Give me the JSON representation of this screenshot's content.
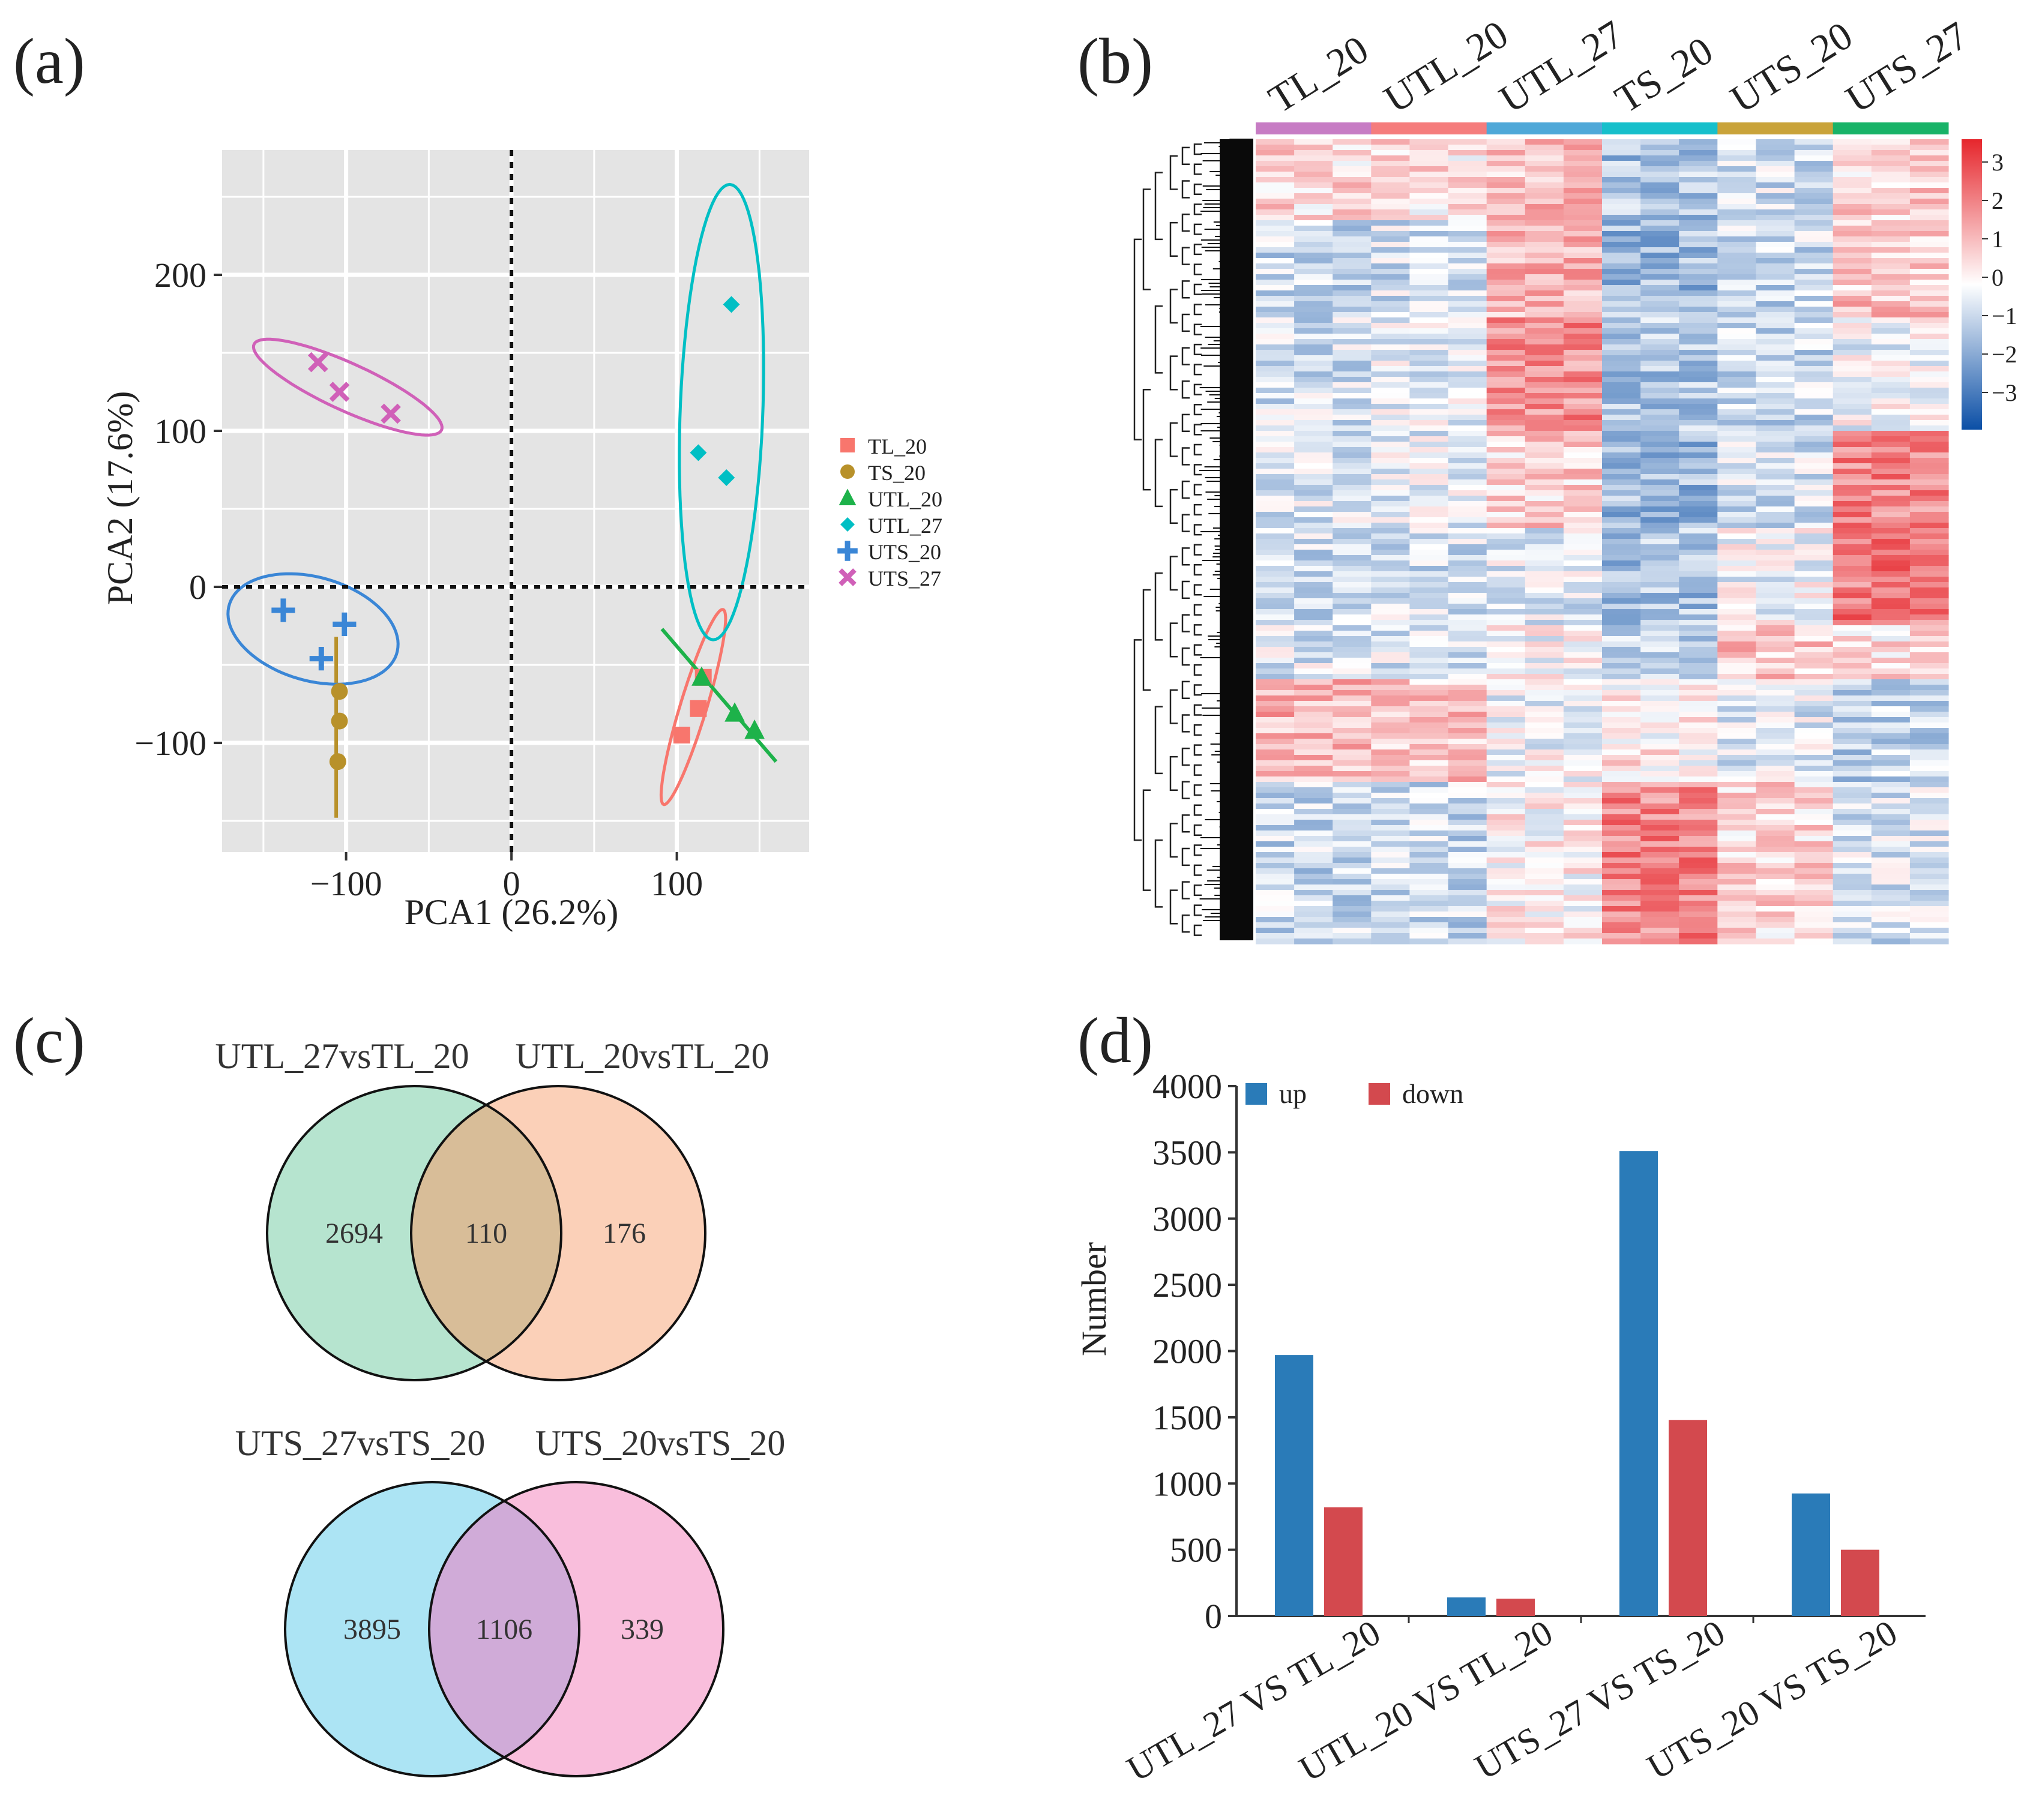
{
  "panels": {
    "a": "(a)",
    "b": "(b)",
    "c": "(c)",
    "d": "(d)"
  },
  "pca": {
    "xlabel": "PCA1 (26.2%)",
    "ylabel": "PCA2 (17.6%)",
    "xlim": [
      -175,
      180
    ],
    "ylim": [
      -170,
      280
    ],
    "xticks": [
      -100,
      0,
      100
    ],
    "yticks": [
      -100,
      0,
      100,
      200
    ],
    "xtick_labels": [
      "−100",
      "0",
      "100"
    ],
    "ytick_labels": [
      "−100",
      "0",
      "100",
      "200"
    ],
    "groups": [
      {
        "name": "TL_20",
        "color": "#F8766D",
        "marker": "square",
        "points": [
          [
            103,
            -95
          ],
          [
            113,
            -78
          ],
          [
            116,
            -58
          ]
        ],
        "ellipse": {
          "cx": 110,
          "cy": -77,
          "rx": 65,
          "ry": 8,
          "angle": 74
        }
      },
      {
        "name": "TS_20",
        "color": "#B8912A",
        "marker": "circle",
        "points": [
          [
            -104,
            -67
          ],
          [
            -104,
            -86
          ],
          [
            -105,
            -112
          ]
        ],
        "line": [
          [
            -106,
            -32
          ],
          [
            -106,
            -148
          ]
        ]
      },
      {
        "name": "UTL_20",
        "color": "#1DB24A",
        "marker": "triangle",
        "points": [
          [
            115,
            -58
          ],
          [
            135,
            -81
          ],
          [
            147,
            -92
          ]
        ],
        "line": [
          [
            91,
            -27
          ],
          [
            160,
            -112
          ]
        ]
      },
      {
        "name": "UTL_27",
        "color": "#00BFC4",
        "marker": "diamond",
        "points": [
          [
            133,
            181
          ],
          [
            113,
            86
          ],
          [
            130,
            70
          ]
        ],
        "ellipse": {
          "cx": 127,
          "cy": 112,
          "rx": 146,
          "ry": 25,
          "angle": 88
        }
      },
      {
        "name": "UTS_20",
        "color": "#3A86D6",
        "marker": "plus",
        "points": [
          [
            -138,
            -15
          ],
          [
            -101,
            -24
          ],
          [
            -115,
            -46
          ]
        ],
        "ellipse": {
          "cx": -120,
          "cy": -27,
          "rx": 53,
          "ry": 33,
          "angle": -18
        }
      },
      {
        "name": "UTS_27",
        "color": "#D060B8",
        "marker": "cross",
        "points": [
          [
            -117,
            144
          ],
          [
            -104,
            125
          ],
          [
            -73,
            111
          ]
        ],
        "ellipse": {
          "cx": -99,
          "cy": 128,
          "rx": 63,
          "ry": 15,
          "angle": -26
        }
      }
    ]
  },
  "heatmap": {
    "columns": [
      "TL_20",
      "UTL_20",
      "UTL_27",
      "TS_20",
      "UTS_20",
      "UTS_27"
    ],
    "column_colors": [
      "#C77CC4",
      "#F57C7C",
      "#4FA8D8",
      "#16BFCB",
      "#C9A33A",
      "#19B368"
    ],
    "scale_ticks": [
      "3",
      "2",
      "1",
      "0",
      "−1",
      "−2",
      "−3"
    ],
    "scale_low": "#0B4FA6",
    "scale_mid": "#FFFFFF",
    "scale_high": "#E6262C"
  },
  "venn": [
    {
      "left_label": "UTL_27vsTL_20",
      "right_label": "UTL_20vsTL_20",
      "left_only": "2694",
      "both": "110",
      "right_only": "176",
      "left_color": "#B6E4CF",
      "right_color": "#FBD0B8",
      "overlap_color": "#D8BD98"
    },
    {
      "left_label": "UTS_27vsTS_20",
      "right_label": "UTS_20vsTS_20",
      "left_only": "3895",
      "both": "1106",
      "right_only": "339",
      "left_color": "#ACE4F4",
      "right_color": "#F9BEDC",
      "overlap_color": "#D0ABD8"
    }
  ],
  "chart_data": {
    "type": "bar",
    "categories": [
      "UTL_27 VS TL_20",
      "UTL_20 VS TL_20",
      "UTS_27 VS TS_20",
      "UTS_20 VS TS_20"
    ],
    "series": [
      {
        "name": "up",
        "color": "#2A7BB8",
        "values": [
          1970,
          140,
          3510,
          925
        ]
      },
      {
        "name": "down",
        "color": "#D3494E",
        "values": [
          820,
          130,
          1480,
          500
        ]
      }
    ],
    "xlabel": "",
    "ylabel": "Number",
    "ylim": [
      0,
      4000
    ],
    "yticks": [
      "0",
      "500",
      "1000",
      "1500",
      "2000",
      "2500",
      "3000",
      "3500",
      "4000"
    ]
  }
}
